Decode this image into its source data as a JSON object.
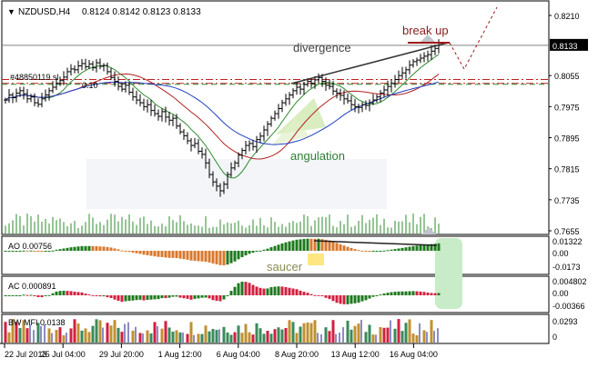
{
  "header": {
    "symbol": "NZDUSD,H4",
    "ohlc": "0.8124 0.8142 0.8123 0.8133",
    "menu_icon": "triangle-down-icon"
  },
  "order_label": "#48850119 sl",
  "order_lot": "0.10",
  "annotations": {
    "divergence": "divergence",
    "break_up": "break up",
    "angulation": "angulation",
    "saucer": "saucer"
  },
  "colors": {
    "bull_hist": "#1e7a1e",
    "bear_hist_ao": "#d9782d",
    "bear_hist_ac": "#d2203f",
    "ma_fast": "#2e8b2e",
    "ma_mid": "#b22222",
    "ma_slow": "#1f3fbf",
    "price_line": "#808080",
    "break_up": "#a01818"
  },
  "chart_data": [
    {
      "type": "ohlc",
      "title": "NZDUSD,H4",
      "ylim": [
        0.7655,
        0.821
      ],
      "y_ticks": [
        "0.8210",
        "0.8133",
        "0.8055",
        "0.7975",
        "0.7895",
        "0.7815",
        "0.7735",
        "0.7655"
      ],
      "current_price": "0.8133",
      "x_ticks": [
        "22 Jul 2013",
        "25 Jul 04:00",
        "29 Jul 20:00",
        "1 Aug 12:00",
        "6 Aug 04:00",
        "8 Aug 20:00",
        "13 Aug 12:00",
        "16 Aug 04:00"
      ],
      "close": [
        0.7992,
        0.8005,
        0.7998,
        0.801,
        0.8016,
        0.8008,
        0.7995,
        0.8,
        0.7985,
        0.7981,
        0.7995,
        0.8005,
        0.8016,
        0.8025,
        0.8035,
        0.8042,
        0.8051,
        0.8065,
        0.8072,
        0.807,
        0.808,
        0.8086,
        0.8078,
        0.8085,
        0.8075,
        0.8088,
        0.8079,
        0.8081,
        0.8065,
        0.805,
        0.804,
        0.8027,
        0.802,
        0.803,
        0.8012,
        0.8,
        0.7992,
        0.7985,
        0.7975,
        0.798,
        0.7965,
        0.7957,
        0.795,
        0.7962,
        0.7948,
        0.794,
        0.7945,
        0.7925,
        0.791,
        0.79,
        0.7887,
        0.7875,
        0.788,
        0.786,
        0.7852,
        0.783,
        0.78,
        0.7781,
        0.777,
        0.7758,
        0.7775,
        0.78,
        0.7817,
        0.783,
        0.785,
        0.7862,
        0.7875,
        0.788,
        0.7872,
        0.789,
        0.7899,
        0.7915,
        0.793,
        0.7945,
        0.7957,
        0.797,
        0.7985,
        0.7995,
        0.8005,
        0.8016,
        0.8025,
        0.802,
        0.8032,
        0.804,
        0.8035,
        0.8044,
        0.805,
        0.804,
        0.803,
        0.8027,
        0.8015,
        0.801,
        0.8004,
        0.7995,
        0.799,
        0.798,
        0.7975,
        0.7973,
        0.798,
        0.7978,
        0.7985,
        0.7992,
        0.8,
        0.801,
        0.8018,
        0.8027,
        0.8035,
        0.8045,
        0.8055,
        0.8062,
        0.807,
        0.8082,
        0.8091,
        0.8095,
        0.81,
        0.8105,
        0.8109,
        0.8118,
        0.8125,
        0.8133
      ],
      "hlines": [
        0.8133,
        0.8045,
        0.8035
      ]
    },
    {
      "type": "bar",
      "title": "AO 0.00756",
      "y_ticks": [
        "0.01322",
        "0.00",
        "-0.0173"
      ],
      "ylim": [
        -0.0173,
        0.01322
      ]
    },
    {
      "type": "bar",
      "title": "AC 0.000891",
      "y_ticks": [
        "0.004802",
        "0.00",
        "-0.00366"
      ],
      "ylim": [
        -0.00366,
        0.004802
      ]
    },
    {
      "type": "bar",
      "title": "BW MFI 0.0138",
      "y_ticks": [
        "0.0293",
        "0"
      ],
      "ylim": [
        0,
        0.0293
      ]
    }
  ]
}
